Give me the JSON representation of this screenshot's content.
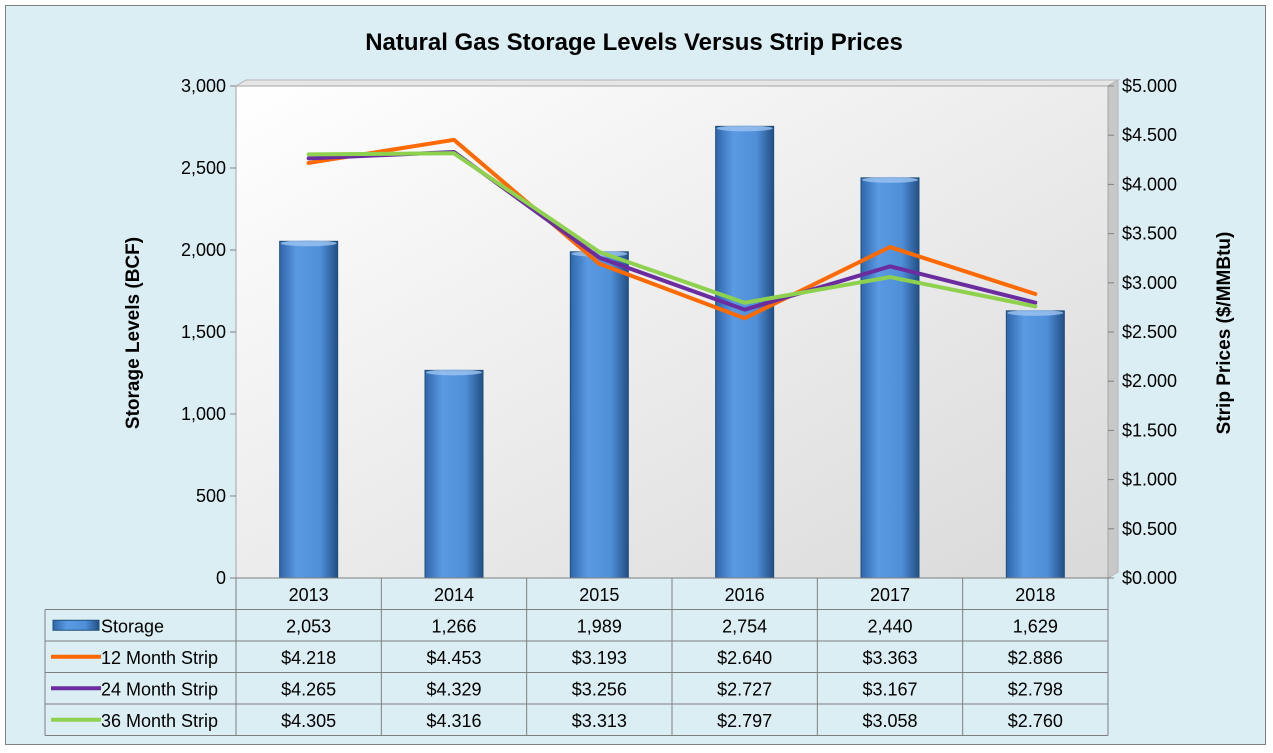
{
  "chart_data": {
    "type": "bar",
    "title": "Natural Gas Storage Levels Versus Strip Prices",
    "categories": [
      "2013",
      "2014",
      "2015",
      "2016",
      "2017",
      "2018"
    ],
    "ylabel_left": "Storage Levels (BCF)",
    "ylabel_right": "Strip Prices ($/MMBtu)",
    "ylim_left": [
      0,
      3000
    ],
    "ylim_right": [
      0,
      5
    ],
    "left_ticks": [
      "0",
      "500",
      "1,000",
      "1,500",
      "2,000",
      "2,500",
      "3,000"
    ],
    "right_ticks": [
      "$0.000",
      "$0.500",
      "$1.000",
      "$1.500",
      "$2.000",
      "$2.500",
      "$3.000",
      "$3.500",
      "$4.000",
      "$4.500",
      "$5.000"
    ],
    "grid": false,
    "legend": "data-table",
    "series": [
      {
        "name": "Storage",
        "type": "bar",
        "axis": "left",
        "color": "#4f8fd8",
        "values": [
          2053,
          1266,
          1989,
          2754,
          2440,
          1629
        ],
        "labels": [
          "2,053",
          "1,266",
          "1,989",
          "2,754",
          "2,440",
          "1,629"
        ]
      },
      {
        "name": "12 Month Strip",
        "type": "line",
        "axis": "right",
        "color": "#ff6a00",
        "values": [
          4.218,
          4.453,
          3.193,
          2.64,
          3.363,
          2.886
        ],
        "labels": [
          "$4.218",
          "$4.453",
          "$3.193",
          "$2.640",
          "$3.363",
          "$2.886"
        ]
      },
      {
        "name": "24 Month Strip",
        "type": "line",
        "axis": "right",
        "color": "#6a2c9e",
        "values": [
          4.265,
          4.329,
          3.256,
          2.727,
          3.167,
          2.798
        ],
        "labels": [
          "$4.265",
          "$4.329",
          "$3.256",
          "$2.727",
          "$3.167",
          "$2.798"
        ]
      },
      {
        "name": "36 Month Strip",
        "type": "line",
        "axis": "right",
        "color": "#8ed14f",
        "values": [
          4.305,
          4.316,
          3.313,
          2.797,
          3.058,
          2.76
        ],
        "labels": [
          "$4.305",
          "$4.316",
          "$3.313",
          "$2.797",
          "$3.058",
          "$2.760"
        ]
      }
    ]
  }
}
